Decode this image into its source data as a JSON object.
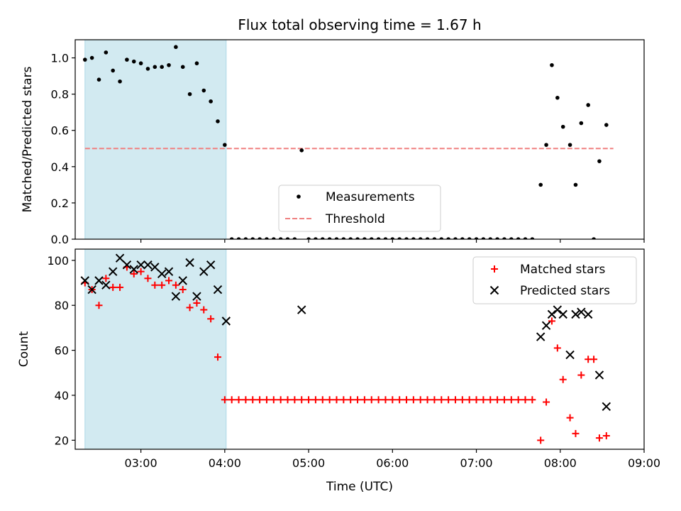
{
  "chart_data": [
    {
      "type": "scatter",
      "title": "Flux total observing time = 1.67 h",
      "xlabel": "",
      "ylabel": "Matched/Predicted stars",
      "xlim": [
        "02:13",
        "09:00"
      ],
      "ylim": [
        0,
        1.1
      ],
      "yticks": [
        "0.0",
        "0.2",
        "0.4",
        "0.6",
        "0.8",
        "1.0"
      ],
      "shaded_span": [
        "02:20",
        "04:01"
      ],
      "shaded_color": "#add8e6",
      "threshold": {
        "name": "Threshold",
        "y": 0.5,
        "x_range": [
          "02:20",
          "08:38"
        ],
        "color": "#f08080"
      },
      "legend_position": "lower-center",
      "series": [
        {
          "name": "Measurements",
          "color": "#000000",
          "points": [
            [
              "02:20",
              0.99
            ],
            [
              "02:25",
              1.0
            ],
            [
              "02:30",
              0.88
            ],
            [
              "02:35",
              1.03
            ],
            [
              "02:40",
              0.93
            ],
            [
              "02:45",
              0.87
            ],
            [
              "02:50",
              0.99
            ],
            [
              "02:55",
              0.98
            ],
            [
              "03:00",
              0.97
            ],
            [
              "03:05",
              0.94
            ],
            [
              "03:10",
              0.95
            ],
            [
              "03:15",
              0.95
            ],
            [
              "03:20",
              0.96
            ],
            [
              "03:25",
              1.06
            ],
            [
              "03:30",
              0.95
            ],
            [
              "03:35",
              0.8
            ],
            [
              "03:40",
              0.97
            ],
            [
              "03:45",
              0.82
            ],
            [
              "03:50",
              0.76
            ],
            [
              "03:55",
              0.65
            ],
            [
              "04:00",
              0.52
            ],
            [
              "04:05",
              0.0
            ],
            [
              "04:10",
              0.0
            ],
            [
              "04:15",
              0.0
            ],
            [
              "04:20",
              0.0
            ],
            [
              "04:25",
              0.0
            ],
            [
              "04:30",
              0.0
            ],
            [
              "04:35",
              0.0
            ],
            [
              "04:40",
              0.0
            ],
            [
              "04:45",
              0.0
            ],
            [
              "04:50",
              0.0
            ],
            [
              "04:55",
              0.49
            ],
            [
              "05:00",
              0.0
            ],
            [
              "05:05",
              0.0
            ],
            [
              "05:10",
              0.0
            ],
            [
              "05:15",
              0.0
            ],
            [
              "05:20",
              0.0
            ],
            [
              "05:25",
              0.0
            ],
            [
              "05:30",
              0.0
            ],
            [
              "05:35",
              0.0
            ],
            [
              "05:40",
              0.0
            ],
            [
              "05:45",
              0.0
            ],
            [
              "05:50",
              0.0
            ],
            [
              "05:55",
              0.0
            ],
            [
              "06:00",
              0.0
            ],
            [
              "06:05",
              0.0
            ],
            [
              "06:10",
              0.0
            ],
            [
              "06:15",
              0.0
            ],
            [
              "06:20",
              0.0
            ],
            [
              "06:25",
              0.0
            ],
            [
              "06:30",
              0.0
            ],
            [
              "06:35",
              0.0
            ],
            [
              "06:40",
              0.0
            ],
            [
              "06:45",
              0.0
            ],
            [
              "06:50",
              0.0
            ],
            [
              "06:55",
              0.0
            ],
            [
              "07:00",
              0.0
            ],
            [
              "07:05",
              0.0
            ],
            [
              "07:10",
              0.0
            ],
            [
              "07:15",
              0.0
            ],
            [
              "07:20",
              0.0
            ],
            [
              "07:25",
              0.0
            ],
            [
              "07:30",
              0.0
            ],
            [
              "07:35",
              0.0
            ],
            [
              "07:40",
              0.0
            ],
            [
              "07:46",
              0.3
            ],
            [
              "07:50",
              0.52
            ],
            [
              "07:54",
              0.96
            ],
            [
              "07:58",
              0.78
            ],
            [
              "08:02",
              0.62
            ],
            [
              "08:07",
              0.52
            ],
            [
              "08:11",
              0.3
            ],
            [
              "08:15",
              0.64
            ],
            [
              "08:20",
              0.74
            ],
            [
              "08:24",
              0.0
            ],
            [
              "08:28",
              0.43
            ],
            [
              "08:33",
              0.63
            ]
          ]
        }
      ]
    },
    {
      "type": "scatter",
      "title": "",
      "xlabel": "Time (UTC)",
      "ylabel": "Count",
      "xlim": [
        "02:13",
        "09:00"
      ],
      "ylim": [
        16,
        105
      ],
      "xticks": [
        "03:00",
        "04:00",
        "05:00",
        "06:00",
        "07:00",
        "08:00",
        "09:00"
      ],
      "yticks": [
        "20",
        "40",
        "60",
        "80",
        "100"
      ],
      "shaded_span": [
        "02:20",
        "04:01"
      ],
      "shaded_color": "#add8e6",
      "legend_position": "top-right",
      "series": [
        {
          "name": "Matched stars",
          "color": "#ff0000",
          "marker": "plus",
          "points": [
            [
              "02:20",
              90
            ],
            [
              "02:25",
              87
            ],
            [
              "02:30",
              80
            ],
            [
              "02:35",
              92
            ],
            [
              "02:40",
              88
            ],
            [
              "02:45",
              88
            ],
            [
              "02:50",
              97
            ],
            [
              "02:55",
              94
            ],
            [
              "03:00",
              95
            ],
            [
              "03:05",
              92
            ],
            [
              "03:10",
              89
            ],
            [
              "03:15",
              89
            ],
            [
              "03:20",
              91
            ],
            [
              "03:25",
              89
            ],
            [
              "03:30",
              87
            ],
            [
              "03:35",
              79
            ],
            [
              "03:40",
              81
            ],
            [
              "03:45",
              78
            ],
            [
              "03:50",
              74
            ],
            [
              "03:55",
              57
            ],
            [
              "04:00",
              38
            ],
            [
              "04:05",
              38
            ],
            [
              "04:10",
              38
            ],
            [
              "04:15",
              38
            ],
            [
              "04:20",
              38
            ],
            [
              "04:25",
              38
            ],
            [
              "04:30",
              38
            ],
            [
              "04:35",
              38
            ],
            [
              "04:40",
              38
            ],
            [
              "04:45",
              38
            ],
            [
              "04:50",
              38
            ],
            [
              "04:55",
              38
            ],
            [
              "05:00",
              38
            ],
            [
              "05:05",
              38
            ],
            [
              "05:10",
              38
            ],
            [
              "05:15",
              38
            ],
            [
              "05:20",
              38
            ],
            [
              "05:25",
              38
            ],
            [
              "05:30",
              38
            ],
            [
              "05:35",
              38
            ],
            [
              "05:40",
              38
            ],
            [
              "05:45",
              38
            ],
            [
              "05:50",
              38
            ],
            [
              "05:55",
              38
            ],
            [
              "06:00",
              38
            ],
            [
              "06:05",
              38
            ],
            [
              "06:10",
              38
            ],
            [
              "06:15",
              38
            ],
            [
              "06:20",
              38
            ],
            [
              "06:25",
              38
            ],
            [
              "06:30",
              38
            ],
            [
              "06:35",
              38
            ],
            [
              "06:40",
              38
            ],
            [
              "06:45",
              38
            ],
            [
              "06:50",
              38
            ],
            [
              "06:55",
              38
            ],
            [
              "07:00",
              38
            ],
            [
              "07:05",
              38
            ],
            [
              "07:10",
              38
            ],
            [
              "07:15",
              38
            ],
            [
              "07:20",
              38
            ],
            [
              "07:25",
              38
            ],
            [
              "07:30",
              38
            ],
            [
              "07:35",
              38
            ],
            [
              "07:40",
              38
            ],
            [
              "07:46",
              20
            ],
            [
              "07:50",
              37
            ],
            [
              "07:54",
              73
            ],
            [
              "07:58",
              61
            ],
            [
              "08:02",
              47
            ],
            [
              "08:07",
              30
            ],
            [
              "08:11",
              23
            ],
            [
              "08:15",
              49
            ],
            [
              "08:20",
              56
            ],
            [
              "08:24",
              56
            ],
            [
              "08:28",
              21
            ],
            [
              "08:33",
              22
            ]
          ]
        },
        {
          "name": "Predicted stars",
          "color": "#000000",
          "marker": "x",
          "points": [
            [
              "02:20",
              91
            ],
            [
              "02:25",
              87
            ],
            [
              "02:30",
              91
            ],
            [
              "02:35",
              89
            ],
            [
              "02:40",
              95
            ],
            [
              "02:45",
              101
            ],
            [
              "02:50",
              98
            ],
            [
              "02:55",
              96
            ],
            [
              "03:00",
              98
            ],
            [
              "03:05",
              98
            ],
            [
              "03:10",
              97
            ],
            [
              "03:15",
              94
            ],
            [
              "03:20",
              95
            ],
            [
              "03:25",
              84
            ],
            [
              "03:30",
              91
            ],
            [
              "03:35",
              99
            ],
            [
              "03:40",
              84
            ],
            [
              "03:45",
              95
            ],
            [
              "03:50",
              98
            ],
            [
              "03:55",
              87
            ],
            [
              "04:01",
              73
            ],
            [
              "04:55",
              78
            ],
            [
              "07:46",
              66
            ],
            [
              "07:50",
              71
            ],
            [
              "07:54",
              76
            ],
            [
              "07:58",
              78
            ],
            [
              "08:02",
              76
            ],
            [
              "08:07",
              58
            ],
            [
              "08:11",
              76
            ],
            [
              "08:15",
              77
            ],
            [
              "08:20",
              76
            ],
            [
              "08:28",
              49
            ],
            [
              "08:33",
              35
            ]
          ]
        }
      ]
    }
  ]
}
